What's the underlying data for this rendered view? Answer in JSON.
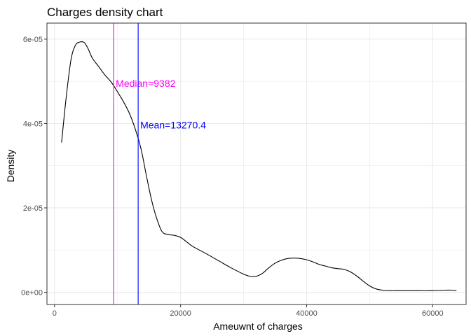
{
  "chart_data": {
    "type": "line",
    "title": "Charges density chart",
    "xlabel": "Ameuwnt of charges",
    "ylabel": "Density",
    "xlim": [
      -1200,
      65300
    ],
    "ylim": [
      -2.9e-06,
      6.38e-05
    ],
    "x_ticks": [
      0,
      20000,
      40000,
      60000
    ],
    "x_tick_labels": [
      "0",
      "20000",
      "40000",
      "60000"
    ],
    "x_minor_ticks": [
      10000,
      30000,
      50000
    ],
    "y_ticks": [
      0,
      2e-05,
      4e-05,
      6e-05
    ],
    "y_tick_labels": [
      "0e+00",
      "2e-05",
      "4e-05",
      "6e-05"
    ],
    "y_minor_ticks": [
      1e-05,
      3e-05,
      5e-05
    ],
    "grid": true,
    "series": [
      {
        "color": "#000000",
        "x": [
          1122,
          1800,
          2600,
          3300,
          4000,
          4700,
          5300,
          6000,
          7000,
          8000,
          9000,
          10000,
          11000,
          12000,
          13000,
          13800,
          14500,
          15300,
          16000,
          17000,
          18000,
          19000,
          20000,
          21000,
          22000,
          24000,
          26000,
          28000,
          30000,
          31000,
          32000,
          33000,
          34000,
          35000,
          36000,
          37000,
          38000,
          39000,
          40000,
          41000,
          42000,
          43000,
          44000,
          45000,
          46000,
          47000,
          48000,
          49000,
          50000,
          51000,
          52000,
          53000,
          54000,
          55000,
          56000,
          58000,
          60000,
          62000,
          63000,
          63770
        ],
        "y": [
          3.55e-05,
          4.55e-05,
          5.5e-05,
          5.85e-05,
          5.93e-05,
          5.92e-05,
          5.78e-05,
          5.55e-05,
          5.35e-05,
          5.15e-05,
          4.98e-05,
          4.75e-05,
          4.5e-05,
          4.2e-05,
          3.78e-05,
          3.35e-05,
          2.82e-05,
          2.25e-05,
          1.85e-05,
          1.45e-05,
          1.37e-05,
          1.35e-05,
          1.3e-05,
          1.19e-05,
          1.08e-05,
          9.2e-06,
          7.5e-06,
          5.8e-06,
          4.3e-06,
          3.8e-06,
          3.8e-06,
          4.5e-06,
          5.8e-06,
          6.9e-06,
          7.6e-06,
          8e-06,
          8.1e-06,
          8e-06,
          7.7e-06,
          7.2e-06,
          6.6e-06,
          6.2e-06,
          5.8e-06,
          5.6e-06,
          5.4e-06,
          4.8e-06,
          3.8e-06,
          2.6e-06,
          1.5e-06,
          8e-07,
          5e-07,
          4e-07,
          4e-07,
          4e-07,
          4e-07,
          4e-07,
          4e-07,
          5e-07,
          5e-07,
          4e-07
        ]
      }
    ],
    "vlines": [
      {
        "x": 9382,
        "color": "#ff00ff",
        "label": "Median=9382",
        "label_y": 4.95e-05
      },
      {
        "x": 13270.4,
        "color": "#0000ff",
        "label": "Mean=13270.4",
        "label_y": 3.97e-05
      }
    ],
    "panel_background": "#ffffff",
    "panel_border": "#333333",
    "grid_color": "#ebebeb"
  }
}
